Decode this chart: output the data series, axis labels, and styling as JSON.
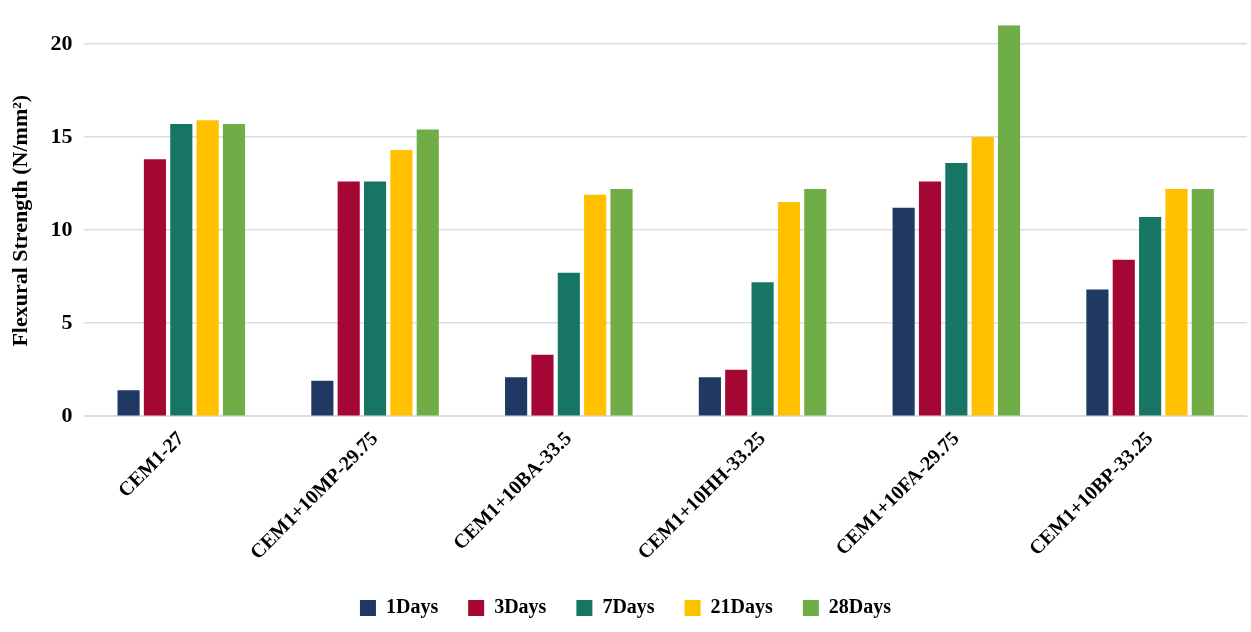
{
  "chart_data": {
    "type": "bar",
    "ylabel": "Flexural Strength (N/mm²)",
    "categories": [
      "CEM1-27",
      "CEM1+10MP-29.75",
      "CEM1+10BA-33.5",
      "CEM1+10HH-33.25",
      "CEM1+10FA-29.75",
      "CEM1+10BP-33.25"
    ],
    "series": [
      {
        "name": "1Days",
        "color": "#203864",
        "values": [
          1.4,
          1.9,
          2.1,
          2.1,
          11.2,
          6.8
        ]
      },
      {
        "name": "3Days",
        "color": "#a50734",
        "values": [
          13.8,
          12.6,
          3.3,
          2.5,
          12.6,
          8.4
        ]
      },
      {
        "name": "7Days",
        "color": "#177563",
        "values": [
          15.7,
          12.6,
          7.7,
          7.2,
          13.6,
          10.7
        ]
      },
      {
        "name": "21Days",
        "color": "#ffc000",
        "values": [
          15.9,
          14.3,
          11.9,
          11.5,
          15.0,
          12.2
        ]
      },
      {
        "name": "28Days",
        "color": "#70ad47",
        "values": [
          15.7,
          15.4,
          12.2,
          12.2,
          21,
          12.2
        ]
      }
    ],
    "ylim": [
      0,
      21
    ],
    "yticks": [
      0,
      5,
      10,
      15,
      20
    ],
    "grid": "y",
    "legend": "bottom"
  }
}
